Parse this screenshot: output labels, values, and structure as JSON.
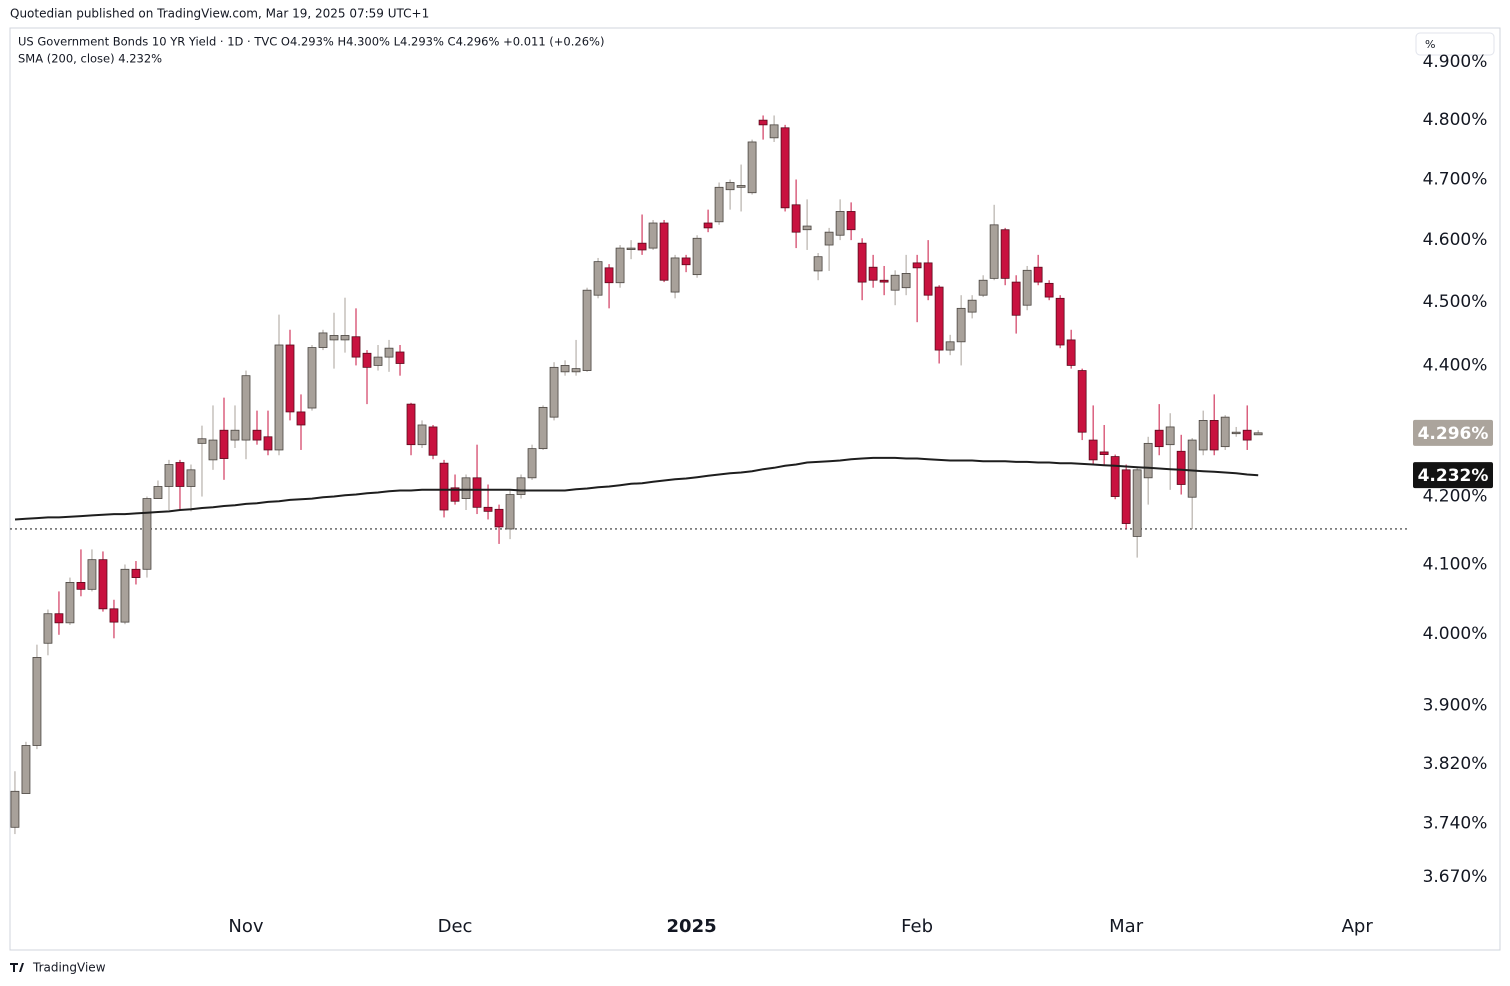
{
  "header": {
    "publisher": "Quotedian published on TradingView.com, Mar 19, 2025 07:59 UTC+1",
    "footer": "TradingView"
  },
  "chart_data": {
    "type": "candlestick",
    "title": "US Government Bonds 10 YR Yield · 1D · TVC  O4.293%  H4.300%  L4.293%  C4.296%  +0.011 (+0.26%)",
    "subtitle": "SMA (200, close)  4.232%",
    "unit_label": "%",
    "log_scale": true,
    "up_color": "#a8a19a",
    "down_color": "#c8123f",
    "xlim": [
      -0.45,
      126.8
    ],
    "xticks": [
      {
        "value": 21,
        "label": "Nov"
      },
      {
        "value": 40,
        "label": "Dec"
      },
      {
        "value": 61.5,
        "label": "2025"
      },
      {
        "value": 82,
        "label": "Feb"
      },
      {
        "value": 101,
        "label": "Mar"
      },
      {
        "value": 122,
        "label": "Apr"
      }
    ],
    "ylim": [
      3.627,
      4.956
    ],
    "yticks": [
      {
        "value": 3.67,
        "label": "3.670%"
      },
      {
        "value": 3.74,
        "label": "3.740%"
      },
      {
        "value": 3.82,
        "label": "3.820%"
      },
      {
        "value": 3.9,
        "label": "3.900%"
      },
      {
        "value": 4.0,
        "label": "4.000%"
      },
      {
        "value": 4.1,
        "label": "4.100%"
      },
      {
        "value": 4.2,
        "label": "4.200%"
      },
      {
        "value": 4.4,
        "label": "4.400%"
      },
      {
        "value": 4.5,
        "label": "4.500%"
      },
      {
        "value": 4.6,
        "label": "4.600%"
      },
      {
        "value": 4.7,
        "label": "4.700%"
      },
      {
        "value": 4.8,
        "label": "4.800%"
      },
      {
        "value": 4.9,
        "label": "4.900%"
      }
    ],
    "open": [
      3.735,
      3.78,
      3.845,
      3.987,
      4.029,
      4.016,
      4.074,
      4.064,
      4.107,
      4.036,
      4.017,
      4.093,
      4.093,
      4.197,
      4.215,
      4.251,
      4.215,
      4.28,
      4.255,
      4.3,
      4.285,
      4.285,
      4.3,
      4.29,
      4.27,
      4.432,
      4.328,
      4.334,
      4.428,
      4.44,
      4.44,
      4.445,
      4.419,
      4.4,
      4.413,
      4.421,
      4.34,
      4.278,
      4.305,
      4.25,
      4.213,
      4.197,
      4.228,
      4.184,
      4.181,
      4.152,
      4.203,
      4.228,
      4.272,
      4.32,
      4.39,
      4.39,
      4.392,
      4.511,
      4.555,
      4.531,
      4.585,
      4.595,
      4.587,
      4.628,
      4.516,
      4.571,
      4.544,
      4.628,
      4.63,
      4.683,
      4.687,
      4.678,
      4.8,
      4.77,
      4.787,
      4.658,
      4.617,
      4.55,
      4.592,
      4.608,
      4.647,
      4.595,
      4.556,
      4.535,
      4.519,
      4.523,
      4.563,
      4.563,
      4.524,
      4.424,
      4.437,
      4.484,
      4.511,
      4.538,
      4.617,
      4.532,
      4.495,
      4.556,
      4.53,
      4.506,
      4.44,
      4.392,
      4.285,
      4.267,
      4.26,
      4.24,
      4.141,
      4.228,
      4.3,
      4.278,
      4.268,
      4.199,
      4.27,
      4.315,
      4.275,
      4.296,
      4.3,
      4.293
    ],
    "high": [
      3.81,
      3.85,
      3.985,
      4.035,
      4.061,
      4.081,
      4.122,
      4.122,
      4.119,
      4.049,
      4.1,
      4.105,
      4.2,
      4.224,
      4.255,
      4.255,
      4.248,
      4.307,
      4.338,
      4.35,
      4.338,
      4.392,
      4.33,
      4.33,
      4.48,
      4.456,
      4.355,
      4.432,
      4.456,
      4.483,
      4.507,
      4.49,
      4.424,
      4.432,
      4.44,
      4.432,
      4.342,
      4.315,
      4.308,
      4.255,
      4.233,
      4.233,
      4.278,
      4.218,
      4.188,
      4.21,
      4.233,
      4.278,
      4.338,
      4.405,
      4.408,
      4.44,
      4.523,
      4.571,
      4.561,
      4.592,
      4.6,
      4.642,
      4.633,
      4.633,
      4.576,
      4.576,
      4.608,
      4.65,
      4.695,
      4.7,
      4.725,
      4.767,
      4.808,
      4.808,
      4.792,
      4.7,
      4.667,
      4.579,
      4.62,
      4.667,
      4.662,
      4.603,
      4.576,
      4.558,
      4.551,
      4.576,
      4.576,
      4.6,
      4.527,
      4.448,
      4.511,
      4.511,
      4.543,
      4.658,
      4.62,
      4.543,
      4.558,
      4.576,
      4.535,
      4.511,
      4.456,
      4.395,
      4.338,
      4.308,
      4.263,
      4.248,
      4.243,
      4.29,
      4.34,
      4.326,
      4.293,
      4.288,
      4.33,
      4.355,
      4.323,
      4.305,
      4.338,
      4.3
    ],
    "low": [
      3.726,
      3.78,
      3.84,
      3.97,
      3.999,
      4.013,
      4.054,
      4.061,
      4.032,
      3.994,
      4.014,
      4.071,
      4.081,
      4.197,
      4.18,
      4.18,
      4.178,
      4.2,
      4.24,
      4.225,
      4.273,
      4.256,
      4.278,
      4.262,
      4.262,
      4.315,
      4.27,
      4.33,
      4.424,
      4.395,
      4.42,
      4.4,
      4.34,
      4.392,
      4.39,
      4.384,
      4.262,
      4.273,
      4.256,
      4.169,
      4.188,
      4.18,
      4.174,
      4.166,
      4.13,
      4.137,
      4.197,
      4.225,
      4.27,
      4.315,
      4.384,
      4.384,
      4.39,
      4.506,
      4.49,
      4.523,
      4.569,
      4.576,
      4.584,
      4.532,
      4.506,
      4.548,
      4.539,
      4.613,
      4.625,
      4.65,
      4.647,
      4.675,
      4.767,
      4.763,
      4.647,
      4.587,
      4.584,
      4.535,
      4.55,
      4.6,
      4.6,
      4.503,
      4.523,
      4.511,
      4.495,
      4.511,
      4.468,
      4.503,
      4.403,
      4.416,
      4.4,
      4.474,
      4.508,
      4.535,
      4.527,
      4.45,
      4.487,
      4.527,
      4.503,
      4.427,
      4.395,
      4.285,
      4.248,
      4.248,
      4.196,
      4.152,
      4.11,
      4.188,
      4.262,
      4.21,
      4.203,
      4.152,
      4.262,
      4.262,
      4.27,
      4.29,
      4.27,
      4.293
    ],
    "close": [
      3.783,
      3.845,
      3.967,
      4.029,
      4.016,
      4.074,
      4.064,
      4.107,
      4.036,
      4.017,
      4.093,
      4.081,
      4.197,
      4.215,
      4.248,
      4.215,
      4.24,
      4.287,
      4.285,
      4.257,
      4.3,
      4.384,
      4.285,
      4.27,
      4.432,
      4.328,
      4.308,
      4.428,
      4.451,
      4.447,
      4.447,
      4.413,
      4.397,
      4.413,
      4.427,
      4.403,
      4.278,
      4.308,
      4.262,
      4.18,
      4.193,
      4.228,
      4.184,
      4.178,
      4.155,
      4.203,
      4.228,
      4.272,
      4.335,
      4.397,
      4.4,
      4.395,
      4.519,
      4.565,
      4.531,
      4.587,
      4.587,
      4.584,
      4.628,
      4.535,
      4.571,
      4.56,
      4.603,
      4.62,
      4.687,
      4.695,
      4.69,
      4.763,
      4.792,
      4.792,
      4.653,
      4.613,
      4.623,
      4.573,
      4.613,
      4.647,
      4.617,
      4.532,
      4.535,
      4.532,
      4.543,
      4.546,
      4.555,
      4.511,
      4.424,
      4.437,
      4.49,
      4.503,
      4.535,
      4.625,
      4.538,
      4.479,
      4.551,
      4.532,
      4.508,
      4.432,
      4.4,
      4.297,
      4.255,
      4.263,
      4.2,
      4.16,
      4.24,
      4.28,
      4.275,
      4.305,
      4.218,
      4.285,
      4.315,
      4.27,
      4.32,
      4.297,
      4.285,
      4.296
    ],
    "series": [
      {
        "name": "SMA (200, close)",
        "color": "#1e1e1e",
        "values": [
          4.166,
          4.167,
          4.168,
          4.169,
          4.169,
          4.17,
          4.171,
          4.172,
          4.173,
          4.174,
          4.174,
          4.175,
          4.176,
          4.177,
          4.178,
          4.18,
          4.181,
          4.183,
          4.184,
          4.186,
          4.187,
          4.189,
          4.19,
          4.192,
          4.193,
          4.195,
          4.196,
          4.197,
          4.199,
          4.2,
          4.202,
          4.203,
          4.205,
          4.206,
          4.208,
          4.209,
          4.209,
          4.21,
          4.21,
          4.21,
          4.21,
          4.21,
          4.21,
          4.21,
          4.21,
          4.21,
          4.209,
          4.209,
          4.209,
          4.209,
          4.209,
          4.211,
          4.212,
          4.214,
          4.215,
          4.217,
          4.219,
          4.22,
          4.222,
          4.224,
          4.226,
          4.227,
          4.229,
          4.231,
          4.233,
          4.235,
          4.236,
          4.238,
          4.241,
          4.243,
          4.246,
          4.248,
          4.251,
          4.252,
          4.253,
          4.254,
          4.256,
          4.257,
          4.258,
          4.258,
          4.258,
          4.257,
          4.257,
          4.256,
          4.255,
          4.254,
          4.254,
          4.254,
          4.253,
          4.253,
          4.253,
          4.252,
          4.252,
          4.251,
          4.251,
          4.25,
          4.25,
          4.249,
          4.248,
          4.247,
          4.246,
          4.245,
          4.244,
          4.243,
          4.242,
          4.241,
          4.24,
          4.239,
          4.238,
          4.237,
          4.236,
          4.235,
          4.233,
          4.232
        ]
      }
    ],
    "horizontal_line": 4.152,
    "price_labels": [
      {
        "value": 4.296,
        "label": "4.296%",
        "color": "#aba49c"
      },
      {
        "value": 4.232,
        "label": "4.232%",
        "color": "#131313"
      }
    ]
  }
}
